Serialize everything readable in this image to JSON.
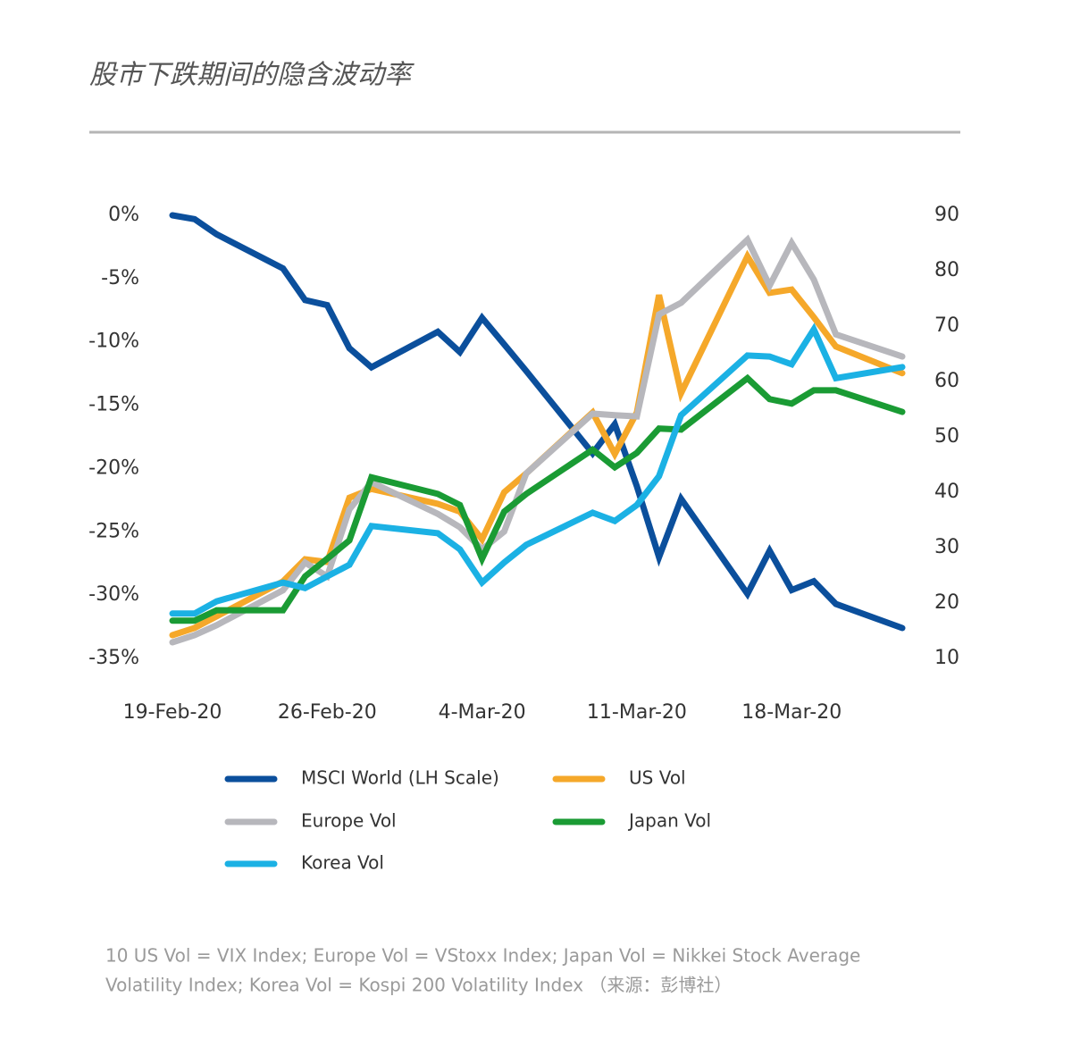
{
  "chart_data": {
    "type": "line",
    "title": "股市下跌期间的隐含波动率",
    "x": [
      "2020-02-19",
      "2020-02-20",
      "2020-02-21",
      "2020-02-24",
      "2020-02-25",
      "2020-02-26",
      "2020-02-27",
      "2020-02-28",
      "2020-03-02",
      "2020-03-03",
      "2020-03-04",
      "2020-03-05",
      "2020-03-06",
      "2020-03-09",
      "2020-03-10",
      "2020-03-11",
      "2020-03-12",
      "2020-03-13",
      "2020-03-16",
      "2020-03-17",
      "2020-03-18",
      "2020-03-19",
      "2020-03-20",
      "2020-03-23"
    ],
    "xlim": [
      "2020-02-19",
      "2020-03-23"
    ],
    "xticks": [
      {
        "value": "2020-02-19",
        "label": "19-Feb-20"
      },
      {
        "value": "2020-02-26",
        "label": "26-Feb-20"
      },
      {
        "value": "2020-03-04",
        "label": "4-Mar-20"
      },
      {
        "value": "2020-03-11",
        "label": "11-Mar-20"
      },
      {
        "value": "2020-03-18",
        "label": "18-Mar-20"
      }
    ],
    "ylim": [
      -35,
      0
    ],
    "yticks": [
      {
        "value": 0,
        "label": "0%"
      },
      {
        "value": -5,
        "label": "-5%"
      },
      {
        "value": -10,
        "label": "-10%"
      },
      {
        "value": -15,
        "label": "-15%"
      },
      {
        "value": -20,
        "label": "-20%"
      },
      {
        "value": -25,
        "label": "-25%"
      },
      {
        "value": -30,
        "label": "-30%"
      },
      {
        "value": -35,
        "label": "-35%"
      }
    ],
    "y2lim": [
      10,
      90
    ],
    "y2ticks": [
      10,
      20,
      30,
      40,
      50,
      60,
      70,
      80,
      90
    ],
    "grid": false,
    "series": [
      {
        "name": "MSCI World (LH Scale)",
        "color": "#0b4f9c",
        "values": [
          0,
          -0.3,
          -1.5,
          -4.2,
          -6.7,
          -7.1,
          -10.5,
          -12.0,
          -9.2,
          -10.8,
          -8.1,
          -10.2,
          -12.3,
          -18.8,
          -16.5,
          -21.4,
          -27.0,
          -22.4,
          -29.9,
          -26.5,
          -29.6,
          -28.9,
          -30.7,
          -32.6
        ]
      },
      {
        "name": "US Vol",
        "color": "#f5a82a",
        "axis": "y2",
        "values": [
          14.2,
          15.5,
          17.6,
          23.9,
          27.9,
          27.4,
          39.0,
          40.6,
          37.9,
          36.5,
          31.5,
          40.0,
          43.4,
          54.4,
          46.9,
          54.4,
          75.6,
          57.9,
          82.6,
          76.0,
          76.6,
          71.6,
          66.3,
          61.5
        ]
      },
      {
        "name": "Europe Vol",
        "color": "#b7b7bc",
        "axis": "y2",
        "values": [
          12.9,
          14.2,
          16.0,
          22.3,
          27.3,
          24.8,
          36.9,
          41.8,
          36.1,
          33.7,
          29.7,
          32.9,
          43.4,
          54.2,
          53.9,
          53.7,
          72.1,
          74.2,
          85.6,
          77.3,
          85.0,
          78.4,
          68.5,
          64.5
        ]
      },
      {
        "name": "Japan Vol",
        "color": "#1a9b34",
        "axis": "y2",
        "values": [
          16.8,
          16.8,
          18.7,
          18.7,
          24.8,
          28.0,
          31.3,
          42.7,
          39.7,
          37.7,
          28.0,
          36.5,
          39.7,
          47.7,
          44.5,
          47.1,
          51.5,
          51.3,
          60.6,
          56.8,
          56.0,
          58.4,
          58.4,
          54.5
        ]
      },
      {
        "name": "Korea Vol",
        "color": "#1bb1e4",
        "axis": "y2",
        "values": [
          18.1,
          18.1,
          20.3,
          23.7,
          22.7,
          24.8,
          26.9,
          33.9,
          32.6,
          29.7,
          23.7,
          27.3,
          30.5,
          36.3,
          34.8,
          37.7,
          42.9,
          53.9,
          64.7,
          64.5,
          63.1,
          69.4,
          60.6,
          62.6
        ]
      }
    ],
    "footnote": [
      "10 US Vol = VIX Index; Europe Vol = VStoxx Index; Japan Vol = Nikkei Stock Average",
      "Volatility Index; Korea Vol = Kospi 200 Volatility Index （来源：彭博社）"
    ]
  }
}
